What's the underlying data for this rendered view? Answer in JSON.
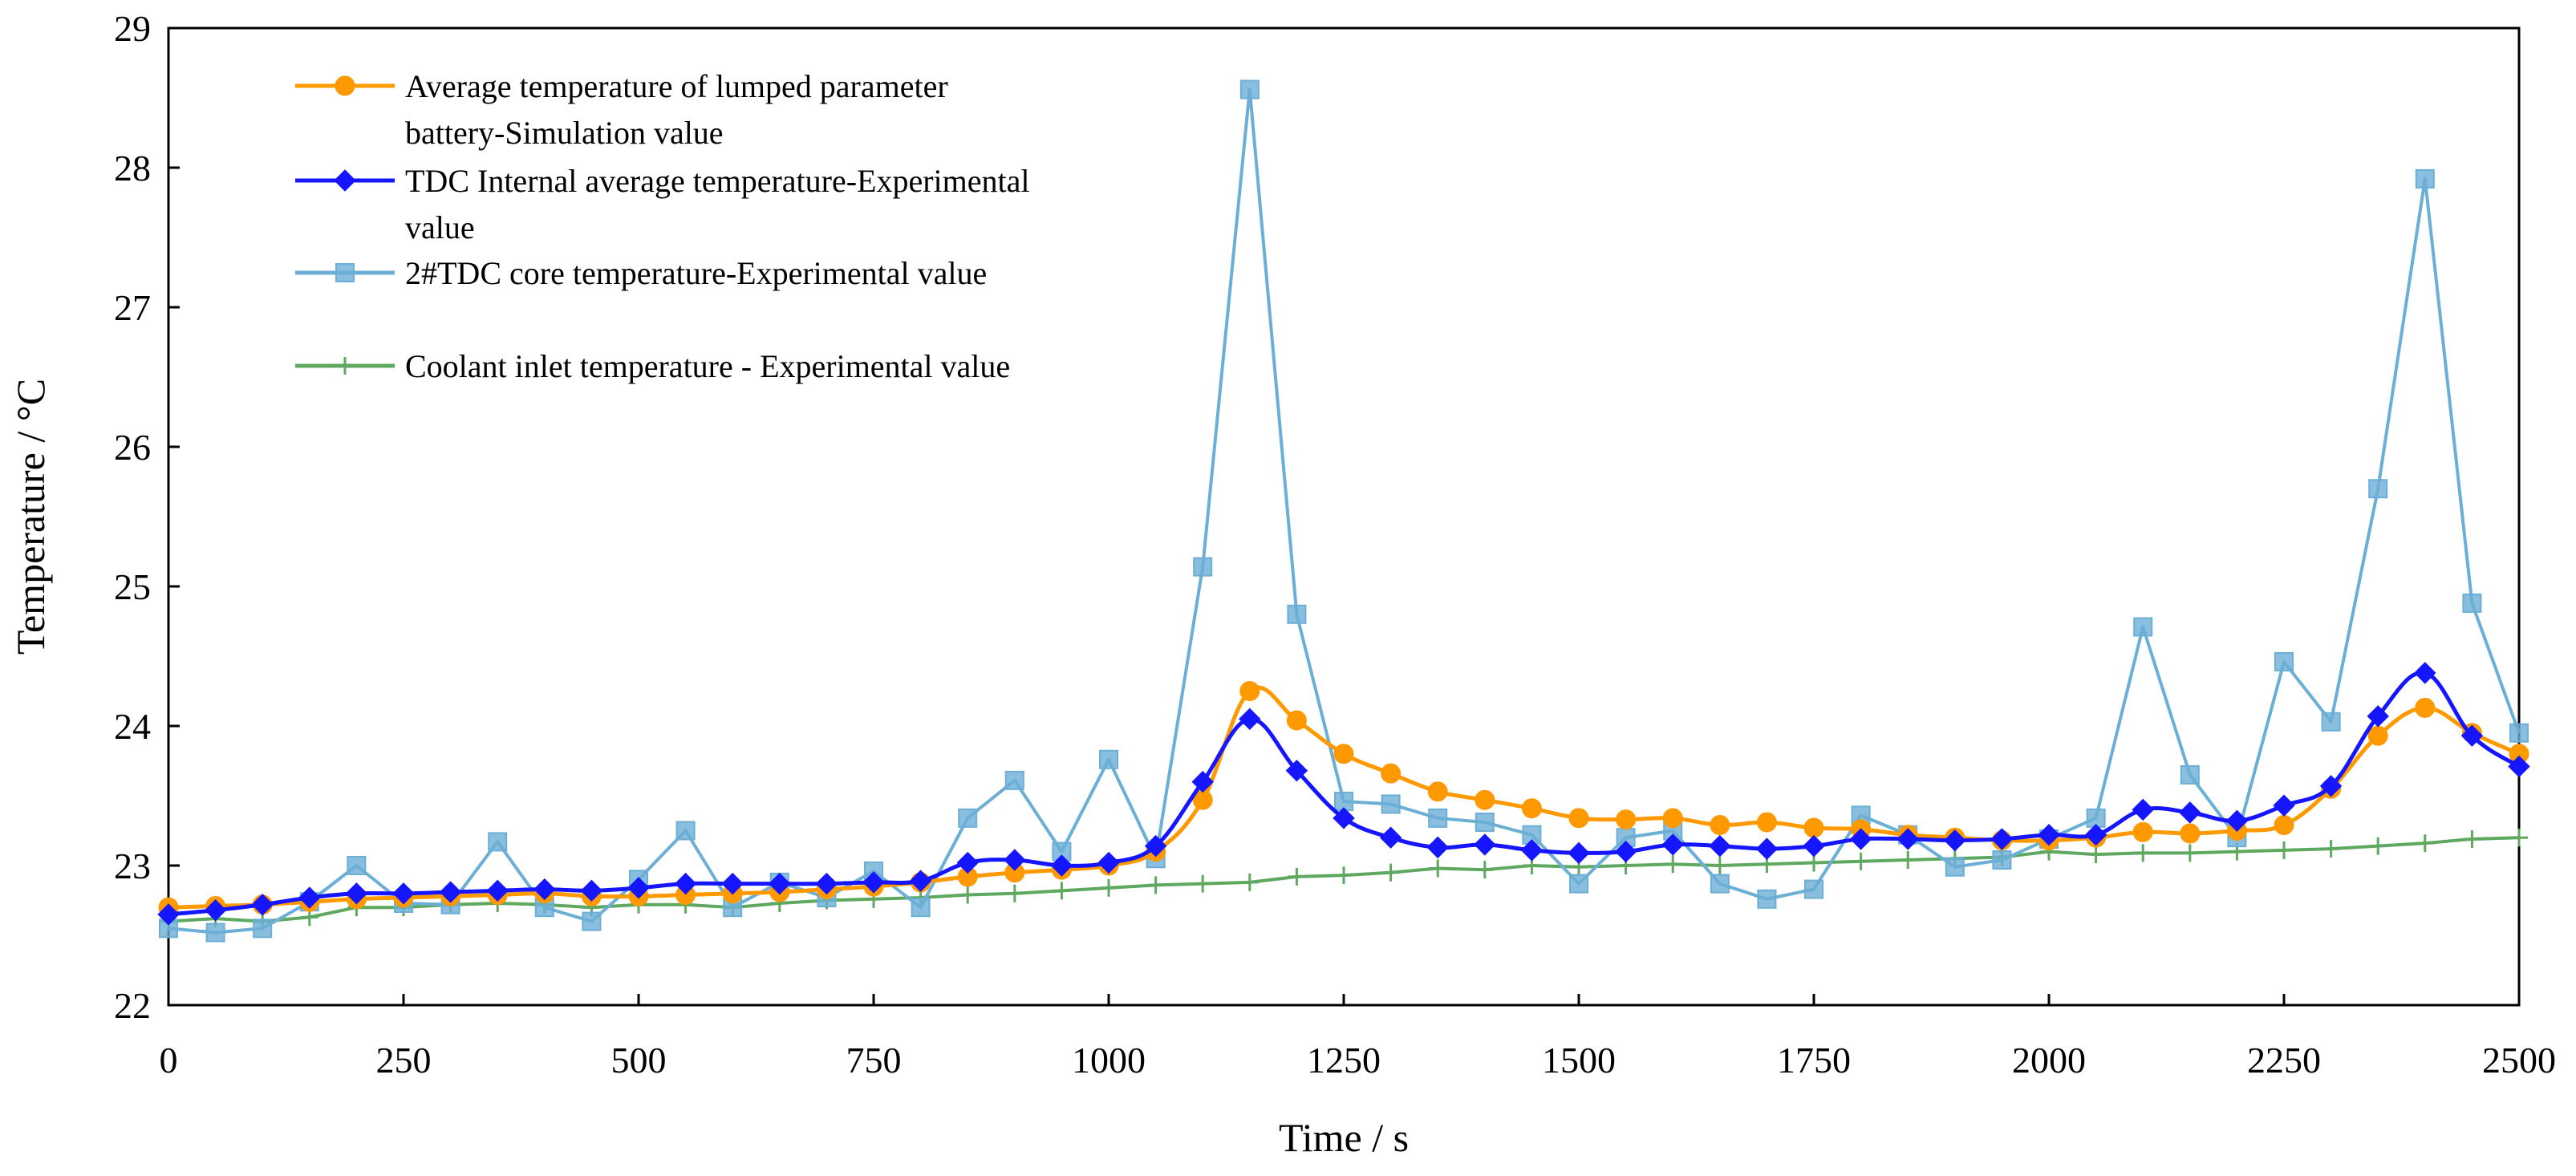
{
  "chart_data": {
    "type": "line",
    "xlabel": "Time / s",
    "ylabel": "Temperature / °C",
    "xlim": [
      0,
      2500
    ],
    "ylim": [
      22,
      29
    ],
    "xticks": [
      0,
      250,
      500,
      750,
      1000,
      1250,
      1500,
      1750,
      2000,
      2250,
      2500
    ],
    "yticks": [
      22,
      23,
      24,
      25,
      26,
      27,
      28,
      29
    ],
    "grid": false,
    "legend_position": "top-left",
    "x": [
      0,
      50,
      100,
      150,
      200,
      250,
      300,
      350,
      400,
      450,
      500,
      550,
      600,
      650,
      700,
      750,
      800,
      850,
      900,
      950,
      1000,
      1050,
      1100,
      1150,
      1200,
      1250,
      1300,
      1350,
      1400,
      1450,
      1500,
      1550,
      1600,
      1650,
      1700,
      1750,
      1800,
      1850,
      1900,
      1950,
      2000,
      2050,
      2100,
      2150,
      2200,
      2250,
      2300,
      2350,
      2400,
      2450,
      2500
    ],
    "series": [
      {
        "name": "Average temperature of lumped parameter battery-Simulation value",
        "legend_lines": [
          "Average temperature of lumped parameter",
          "battery-Simulation value"
        ],
        "color": "#FF9900",
        "marker": "circle",
        "values": [
          22.7,
          22.71,
          22.72,
          22.74,
          22.76,
          22.77,
          22.78,
          22.79,
          22.8,
          22.78,
          22.78,
          22.79,
          22.8,
          22.81,
          22.83,
          22.85,
          22.88,
          22.92,
          22.95,
          22.97,
          23.0,
          23.1,
          23.47,
          24.25,
          24.04,
          23.8,
          23.66,
          23.53,
          23.47,
          23.41,
          23.34,
          23.33,
          23.34,
          23.29,
          23.31,
          23.27,
          23.26,
          23.22,
          23.2,
          23.18,
          23.18,
          23.2,
          23.24,
          23.23,
          23.25,
          23.29,
          23.55,
          23.93,
          24.13,
          23.95,
          23.8
        ]
      },
      {
        "name": "TDC Internal average temperature-Experimental value",
        "legend_lines": [
          "TDC Internal average temperature-Experimental",
          "value"
        ],
        "color": "#1515FF",
        "marker": "diamond",
        "values": [
          22.65,
          22.68,
          22.72,
          22.77,
          22.8,
          22.8,
          22.81,
          22.82,
          22.83,
          22.82,
          22.84,
          22.87,
          22.87,
          22.87,
          22.87,
          22.88,
          22.89,
          23.02,
          23.04,
          23.0,
          23.02,
          23.14,
          23.6,
          24.05,
          23.68,
          23.34,
          23.2,
          23.13,
          23.15,
          23.11,
          23.09,
          23.1,
          23.15,
          23.14,
          23.12,
          23.14,
          23.19,
          23.19,
          23.18,
          23.19,
          23.22,
          23.22,
          23.4,
          23.38,
          23.32,
          23.43,
          23.57,
          24.07,
          24.38,
          23.93,
          23.71
        ]
      },
      {
        "name": "2#TDC core temperature-Experimental value",
        "legend_lines": [
          "2#TDC core temperature-Experimental value"
        ],
        "color": "#6BAED6",
        "marker": "square",
        "values": [
          22.55,
          22.52,
          22.55,
          22.74,
          23.0,
          22.73,
          22.72,
          23.17,
          22.7,
          22.6,
          22.9,
          23.25,
          22.7,
          22.88,
          22.77,
          22.96,
          22.7,
          23.34,
          23.61,
          23.1,
          23.76,
          23.05,
          25.14,
          28.56,
          24.8,
          23.46,
          23.44,
          23.34,
          23.31,
          23.22,
          22.87,
          23.2,
          23.25,
          22.87,
          22.76,
          22.83,
          23.36,
          23.22,
          22.99,
          23.04,
          23.19,
          23.34,
          24.71,
          23.65,
          23.2,
          24.46,
          24.03,
          25.7,
          27.92,
          24.88,
          23.95
        ]
      },
      {
        "name": "Coolant inlet temperature - Experimental value",
        "legend_lines": [
          "Coolant inlet temperature - Experimental value"
        ],
        "color": "#5FA85F",
        "marker": "plus",
        "values": [
          22.6,
          22.62,
          22.6,
          22.63,
          22.7,
          22.7,
          22.72,
          22.73,
          22.72,
          22.7,
          22.72,
          22.72,
          22.7,
          22.73,
          22.75,
          22.76,
          22.77,
          22.79,
          22.8,
          22.82,
          22.84,
          22.86,
          22.87,
          22.88,
          22.92,
          22.93,
          22.95,
          22.98,
          22.97,
          23.0,
          22.99,
          23.0,
          23.01,
          23.0,
          23.01,
          23.02,
          23.03,
          23.04,
          23.05,
          23.06,
          23.1,
          23.08,
          23.09,
          23.09,
          23.1,
          23.11,
          23.12,
          23.14,
          23.16,
          23.19,
          23.2
        ]
      }
    ]
  }
}
